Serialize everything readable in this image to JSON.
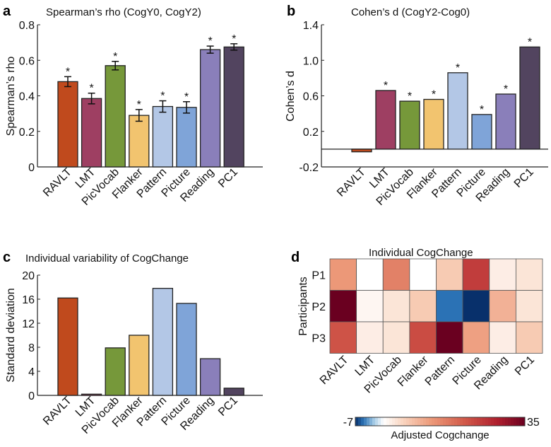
{
  "categories": [
    "RAVLT",
    "LMT",
    "PicVocab",
    "Flanker",
    "Pattern",
    "Picture",
    "Reading",
    "PC1"
  ],
  "colors": [
    "#c04a1d",
    "#9e3f62",
    "#76983a",
    "#f2c46f",
    "#b3c7e6",
    "#7fa4d8",
    "#8a7fba",
    "#52445f"
  ],
  "chart_data": [
    {
      "panel": "a",
      "type": "bar",
      "title": "Spearman’s rho (CogY0, CogY2)",
      "ylabel": "Spearman’s rho",
      "ylim": [
        0,
        0.8
      ],
      "yticks": [
        0,
        0.2,
        0.4,
        0.6,
        0.8
      ],
      "ytick_labels": [
        "0",
        "0.2",
        "0.4",
        "0.6",
        "0.8"
      ],
      "values": [
        0.48,
        0.385,
        0.57,
        0.29,
        0.34,
        0.335,
        0.66,
        0.675
      ],
      "errors": [
        0.028,
        0.03,
        0.024,
        0.033,
        0.032,
        0.032,
        0.02,
        0.018
      ],
      "significance": [
        "*",
        "*",
        "*",
        "*",
        "*",
        "*",
        "*",
        "*"
      ]
    },
    {
      "panel": "b",
      "type": "bar",
      "title": "Cohen’s d (CogY2-Cog0)",
      "ylabel": "Cohen’s d",
      "ylim": [
        -0.2,
        1.4
      ],
      "yticks": [
        -0.2,
        0.2,
        0.6,
        1.0,
        1.4
      ],
      "ytick_labels": [
        "-0.2",
        "0.2",
        "0.6",
        "1.0",
        "1.4"
      ],
      "values": [
        -0.03,
        0.66,
        0.54,
        0.56,
        0.86,
        0.39,
        0.62,
        1.15
      ],
      "significance": [
        "",
        "*",
        "*",
        "*",
        "*",
        "*",
        "*",
        "*"
      ]
    },
    {
      "panel": "c",
      "type": "bar",
      "title": "Individual variability of CogChange",
      "ylabel": "Standard deviation",
      "ylim": [
        0,
        20
      ],
      "yticks": [
        0,
        4,
        8,
        12,
        16,
        20
      ],
      "ytick_labels": [
        "0",
        "4",
        "8",
        "12",
        "16",
        "20"
      ],
      "values": [
        16.2,
        0.2,
        7.9,
        10.0,
        17.8,
        15.3,
        6.1,
        1.2
      ]
    },
    {
      "panel": "d",
      "type": "heatmap",
      "title": "Individual CogChange",
      "ylabel": "Participants",
      "rows": [
        "P1",
        "P2",
        "P3"
      ],
      "values": [
        [
          12,
          0,
          15,
          0,
          6,
          24,
          2,
          3
        ],
        [
          35,
          1,
          3,
          6,
          -5,
          -7,
          9,
          3
        ],
        [
          21,
          2,
          3,
          22,
          35,
          11,
          2,
          6
        ]
      ],
      "colorbar": {
        "min": -7,
        "max": 35,
        "min_label": "-7",
        "max_label": "35",
        "label": "Adjusted Cogchange"
      }
    }
  ]
}
